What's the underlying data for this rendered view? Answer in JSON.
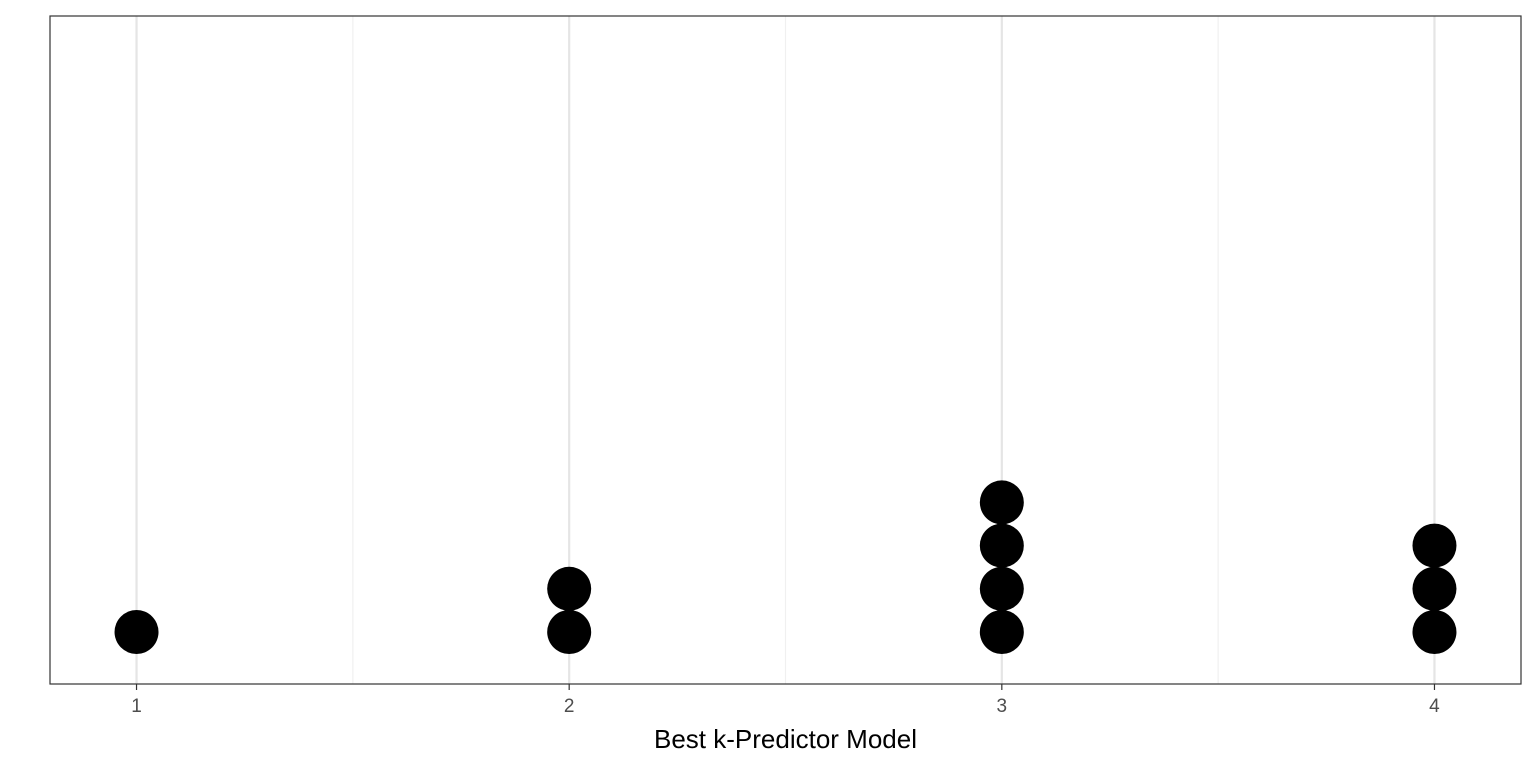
{
  "chart_data": {
    "type": "scatter",
    "subtype": "dotplot",
    "title": "",
    "xlabel": "Best k-Predictor Model",
    "ylabel": "",
    "xlim": [
      0.8,
      4.2
    ],
    "x_ticks": [
      1,
      2,
      3,
      4
    ],
    "x_tick_labels": [
      "1",
      "2",
      "3",
      "4"
    ],
    "y_axis_shown": false,
    "grid": true,
    "legend": "none",
    "stacks": [
      {
        "x": 1,
        "count": 1
      },
      {
        "x": 2,
        "count": 2
      },
      {
        "x": 3,
        "count": 4
      },
      {
        "x": 4,
        "count": 3
      }
    ],
    "colors": {
      "dot": "#000000",
      "panel_border": "#333333",
      "grid_major": "#e5e5e5",
      "grid_minor": "#f0f0f0",
      "tick_label": "#4d4d4d"
    }
  }
}
